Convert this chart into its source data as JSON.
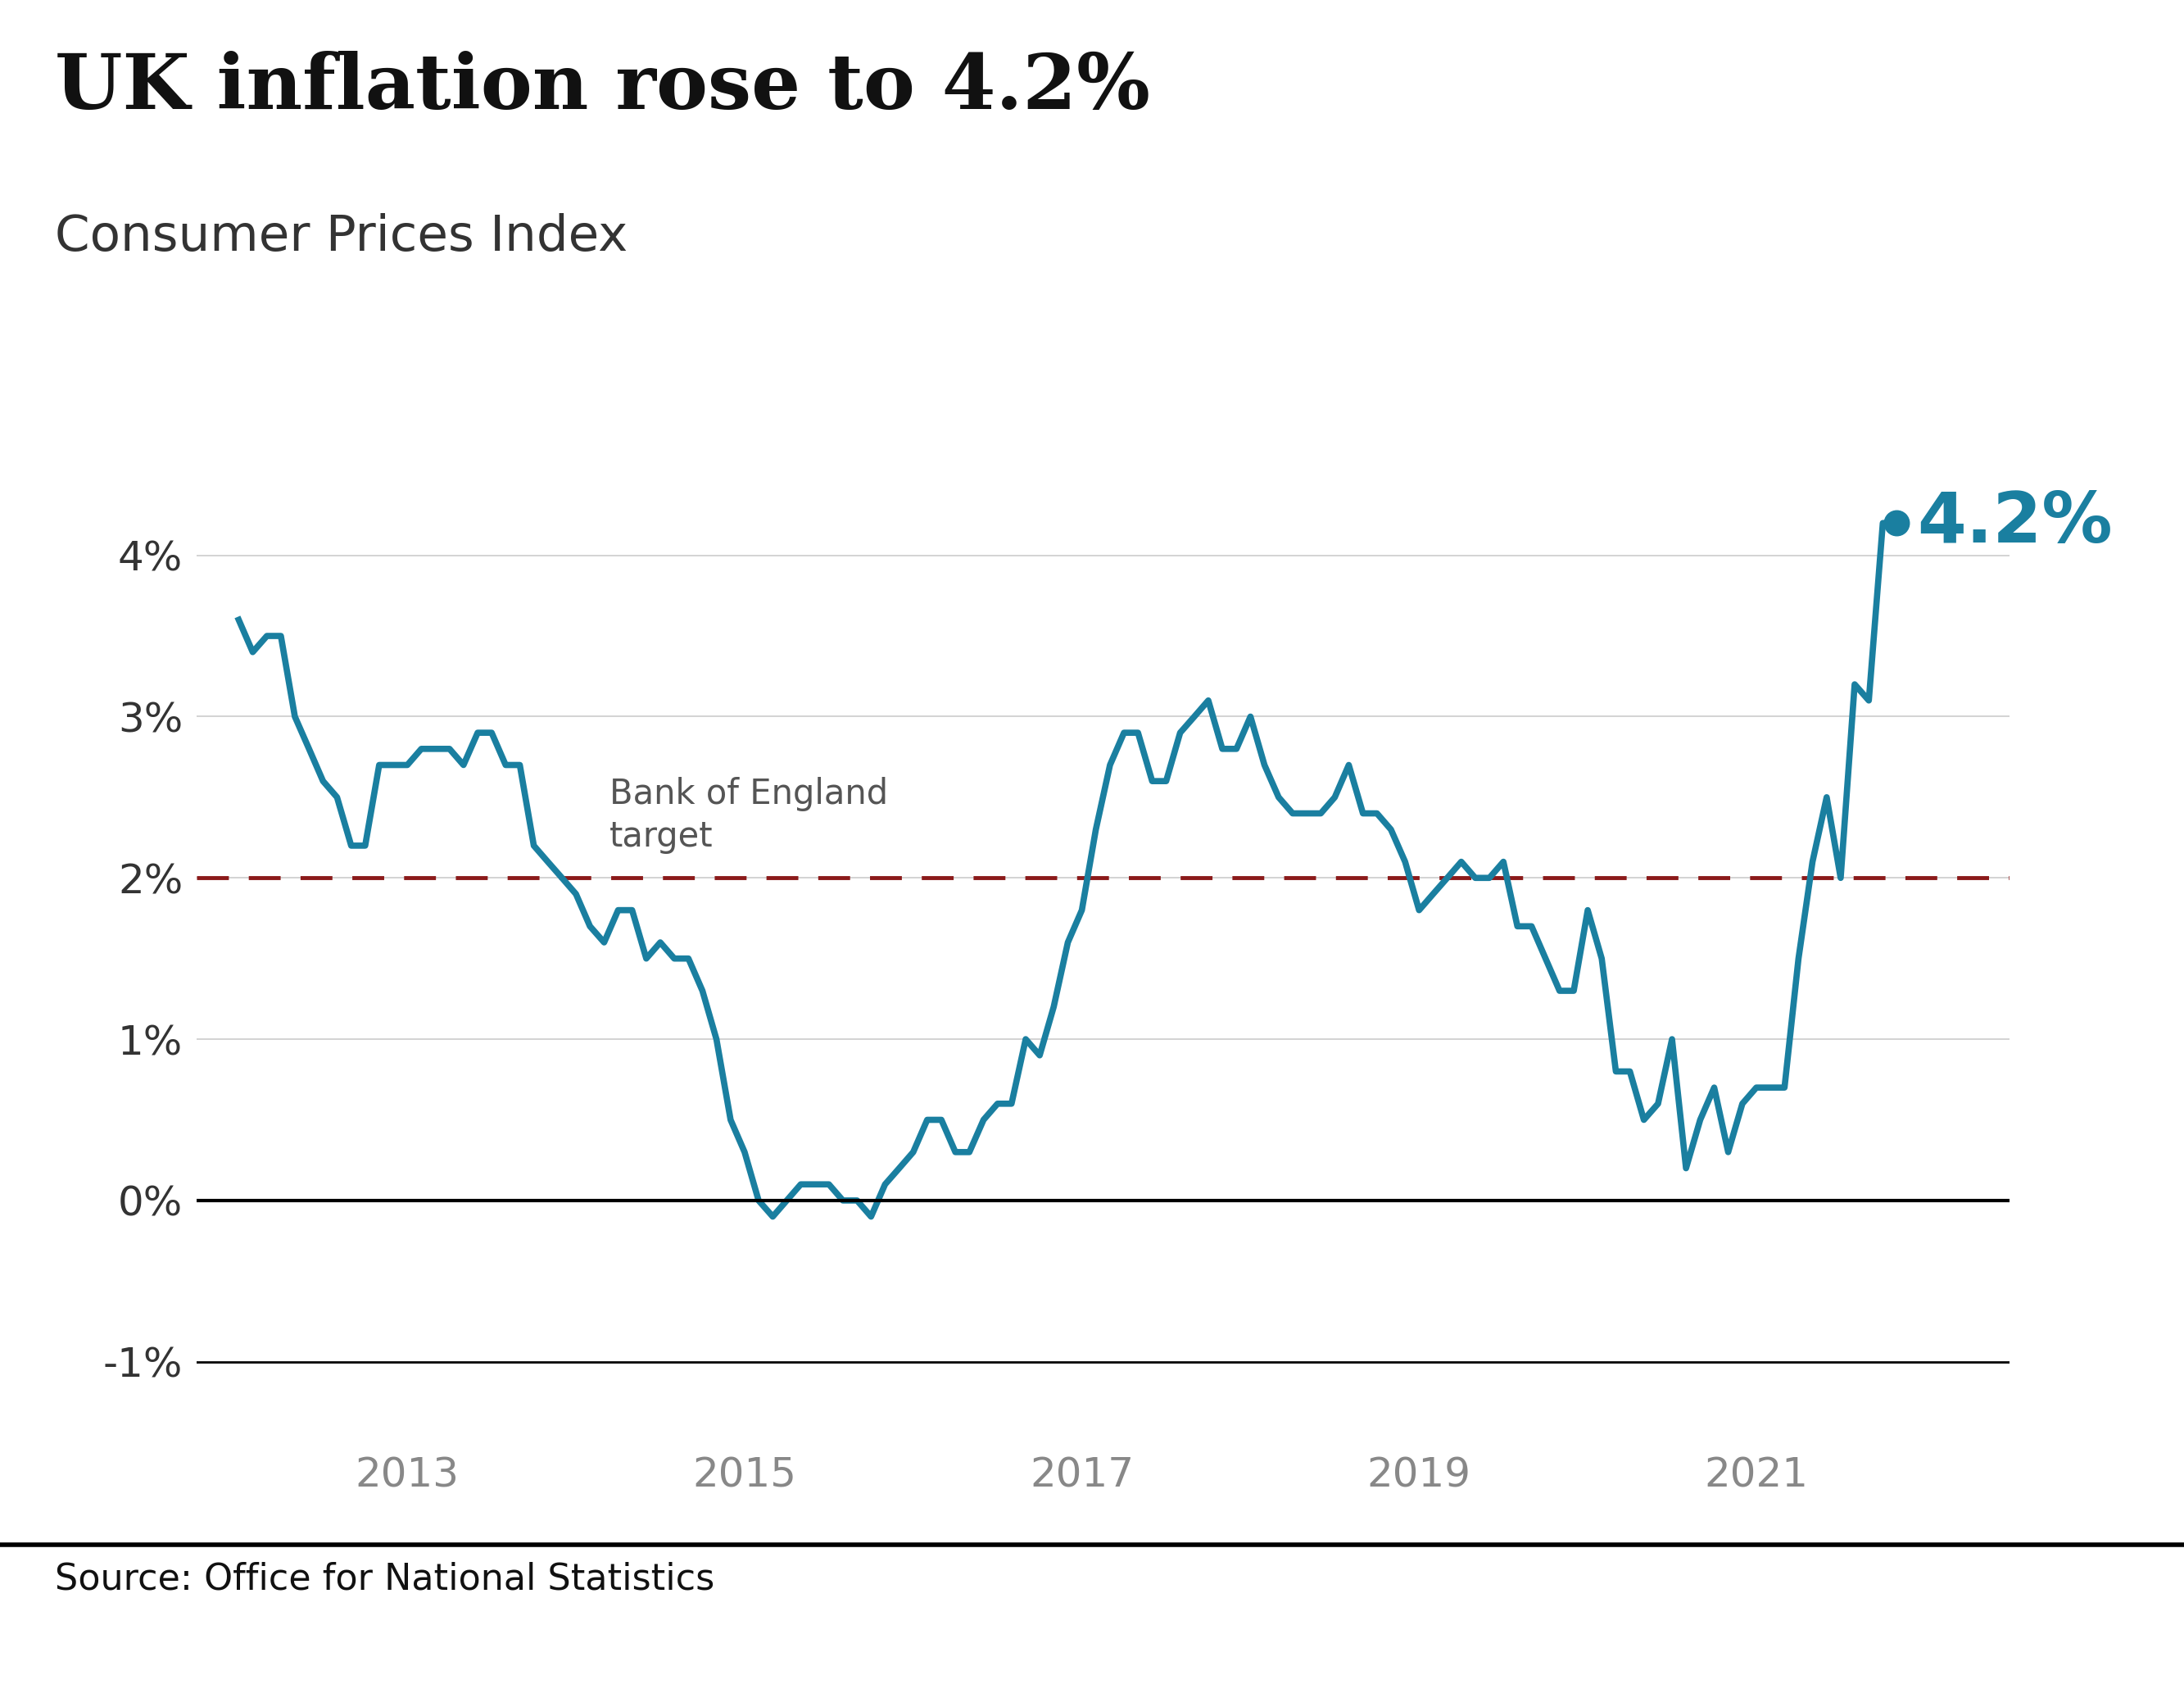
{
  "title": "UK inflation rose to 4.2%",
  "subtitle": "Consumer Prices Index",
  "source": "Source: Office for National Statistics",
  "line_color": "#1a7fa0",
  "target_line_color": "#8b1a1a",
  "target_value": 2.0,
  "target_label": "Bank of England\ntarget",
  "last_value": 4.2,
  "last_value_label": "4.2%",
  "yticks": [
    -1,
    0,
    1,
    2,
    3,
    4
  ],
  "ytick_labels": [
    "-1%",
    "0%",
    "1%",
    "2%",
    "3%",
    "4%"
  ],
  "xticks": [
    2013,
    2015,
    2017,
    2019,
    2021
  ],
  "xlim_start": 2011.75,
  "xlim_end": 2022.5,
  "ylim_min": -1.5,
  "ylim_max": 4.85,
  "background_color": "#ffffff",
  "grid_color": "#cccccc",
  "title_fontsize": 68,
  "subtitle_fontsize": 44,
  "tick_fontsize": 36,
  "annotation_fontsize": 62,
  "source_fontsize": 32,
  "target_label_fontsize": 30,
  "line_width": 5.5,
  "marker_size": 22,
  "data": {
    "dates": [
      2012.0,
      2012.083,
      2012.167,
      2012.25,
      2012.333,
      2012.417,
      2012.5,
      2012.583,
      2012.667,
      2012.75,
      2012.833,
      2012.917,
      2013.0,
      2013.083,
      2013.167,
      2013.25,
      2013.333,
      2013.417,
      2013.5,
      2013.583,
      2013.667,
      2013.75,
      2013.833,
      2013.917,
      2014.0,
      2014.083,
      2014.167,
      2014.25,
      2014.333,
      2014.417,
      2014.5,
      2014.583,
      2014.667,
      2014.75,
      2014.833,
      2014.917,
      2015.0,
      2015.083,
      2015.167,
      2015.25,
      2015.333,
      2015.417,
      2015.5,
      2015.583,
      2015.667,
      2015.75,
      2015.833,
      2015.917,
      2016.0,
      2016.083,
      2016.167,
      2016.25,
      2016.333,
      2016.417,
      2016.5,
      2016.583,
      2016.667,
      2016.75,
      2016.833,
      2016.917,
      2017.0,
      2017.083,
      2017.167,
      2017.25,
      2017.333,
      2017.417,
      2017.5,
      2017.583,
      2017.667,
      2017.75,
      2017.833,
      2017.917,
      2018.0,
      2018.083,
      2018.167,
      2018.25,
      2018.333,
      2018.417,
      2018.5,
      2018.583,
      2018.667,
      2018.75,
      2018.833,
      2018.917,
      2019.0,
      2019.083,
      2019.167,
      2019.25,
      2019.333,
      2019.417,
      2019.5,
      2019.583,
      2019.667,
      2019.75,
      2019.833,
      2019.917,
      2020.0,
      2020.083,
      2020.167,
      2020.25,
      2020.333,
      2020.417,
      2020.5,
      2020.583,
      2020.667,
      2020.75,
      2020.833,
      2020.917,
      2021.0,
      2021.083,
      2021.167,
      2021.25,
      2021.333,
      2021.417,
      2021.5,
      2021.583,
      2021.667,
      2021.75,
      2021.833
    ],
    "values": [
      3.6,
      3.4,
      3.5,
      3.5,
      3.0,
      2.8,
      2.6,
      2.5,
      2.2,
      2.2,
      2.7,
      2.7,
      2.7,
      2.8,
      2.8,
      2.8,
      2.7,
      2.9,
      2.9,
      2.7,
      2.7,
      2.2,
      2.1,
      2.0,
      1.9,
      1.7,
      1.6,
      1.8,
      1.8,
      1.5,
      1.6,
      1.5,
      1.5,
      1.3,
      1.0,
      0.5,
      0.3,
      0.0,
      -0.1,
      0.0,
      0.1,
      0.1,
      0.1,
      0.0,
      0.0,
      -0.1,
      0.1,
      0.2,
      0.3,
      0.5,
      0.5,
      0.3,
      0.3,
      0.5,
      0.6,
      0.6,
      1.0,
      0.9,
      1.2,
      1.6,
      1.8,
      2.3,
      2.7,
      2.9,
      2.9,
      2.6,
      2.6,
      2.9,
      3.0,
      3.1,
      2.8,
      2.8,
      3.0,
      2.7,
      2.5,
      2.4,
      2.4,
      2.4,
      2.5,
      2.7,
      2.4,
      2.4,
      2.3,
      2.1,
      1.8,
      1.9,
      2.0,
      2.1,
      2.0,
      2.0,
      2.1,
      1.7,
      1.7,
      1.5,
      1.3,
      1.3,
      1.8,
      1.5,
      0.8,
      0.8,
      0.5,
      0.6,
      1.0,
      0.2,
      0.5,
      0.7,
      0.3,
      0.6,
      0.7,
      0.7,
      0.7,
      1.5,
      2.1,
      2.5,
      2.0,
      3.2,
      3.1,
      4.2,
      4.2
    ]
  }
}
